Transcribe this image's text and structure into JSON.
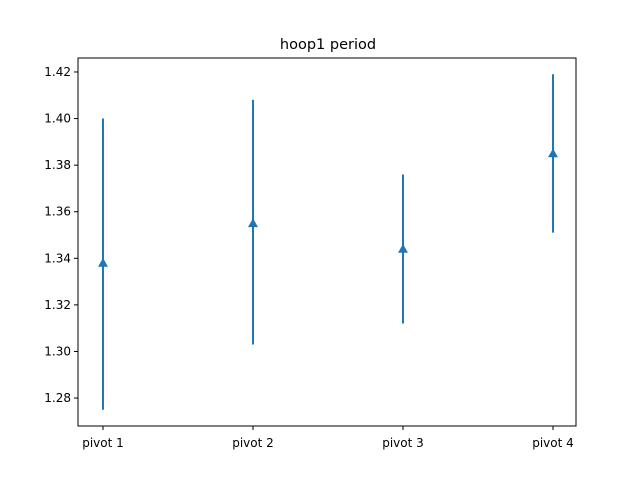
{
  "chart_data": {
    "type": "errorbar",
    "title": "hoop1 period",
    "xlabel": "",
    "ylabel": "",
    "categories": [
      "pivot 1",
      "pivot 2",
      "pivot 3",
      "pivot 4"
    ],
    "values": [
      1.338,
      1.355,
      1.344,
      1.385
    ],
    "err_low": [
      1.275,
      1.303,
      1.312,
      1.351
    ],
    "err_high": [
      1.4,
      1.408,
      1.376,
      1.419
    ],
    "ylim": [
      1.268,
      1.426
    ],
    "yticks": [
      1.28,
      1.3,
      1.32,
      1.34,
      1.36,
      1.38,
      1.4,
      1.42
    ],
    "ytick_labels": [
      "1.28",
      "1.30",
      "1.32",
      "1.34",
      "1.36",
      "1.38",
      "1.40",
      "1.42"
    ],
    "marker": "triangle-up",
    "grid": false,
    "color": "#1f77b4"
  }
}
